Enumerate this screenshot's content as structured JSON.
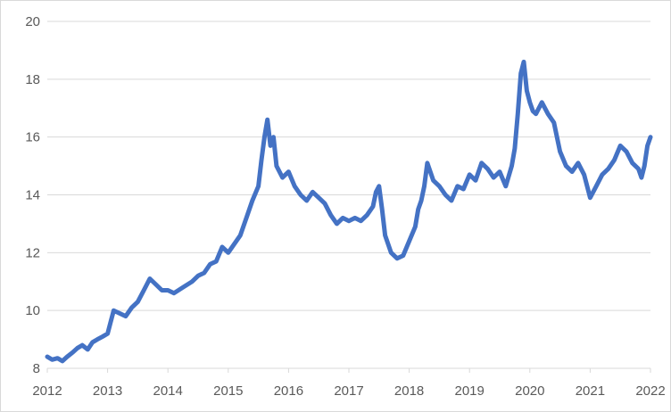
{
  "chart_data": {
    "type": "line",
    "title": "",
    "xlabel": "",
    "ylabel": "",
    "xlim": [
      2012,
      2022
    ],
    "ylim": [
      8,
      20
    ],
    "x_ticks": [
      "2012",
      "2013",
      "2014",
      "2015",
      "2016",
      "2017",
      "2018",
      "2019",
      "2020",
      "2021",
      "2022"
    ],
    "y_ticks": [
      "8",
      "10",
      "12",
      "14",
      "16",
      "18",
      "20"
    ],
    "grid": "horizontal",
    "legend": "none",
    "series": [
      {
        "color": "#4472c4",
        "points": [
          [
            2012.0,
            8.4
          ],
          [
            2012.08,
            8.3
          ],
          [
            2012.17,
            8.35
          ],
          [
            2012.25,
            8.25
          ],
          [
            2012.33,
            8.4
          ],
          [
            2012.42,
            8.55
          ],
          [
            2012.5,
            8.7
          ],
          [
            2012.58,
            8.8
          ],
          [
            2012.67,
            8.65
          ],
          [
            2012.75,
            8.9
          ],
          [
            2012.83,
            9.0
          ],
          [
            2012.92,
            9.1
          ],
          [
            2013.0,
            9.2
          ],
          [
            2013.05,
            9.6
          ],
          [
            2013.1,
            10.0
          ],
          [
            2013.2,
            9.9
          ],
          [
            2013.3,
            9.8
          ],
          [
            2013.4,
            10.1
          ],
          [
            2013.5,
            10.3
          ],
          [
            2013.6,
            10.7
          ],
          [
            2013.7,
            11.1
          ],
          [
            2013.8,
            10.9
          ],
          [
            2013.9,
            10.7
          ],
          [
            2014.0,
            10.7
          ],
          [
            2014.1,
            10.6
          ],
          [
            2014.25,
            10.8
          ],
          [
            2014.4,
            11.0
          ],
          [
            2014.5,
            11.2
          ],
          [
            2014.6,
            11.3
          ],
          [
            2014.7,
            11.6
          ],
          [
            2014.8,
            11.7
          ],
          [
            2014.9,
            12.2
          ],
          [
            2015.0,
            12.0
          ],
          [
            2015.1,
            12.3
          ],
          [
            2015.2,
            12.6
          ],
          [
            2015.3,
            13.2
          ],
          [
            2015.4,
            13.8
          ],
          [
            2015.5,
            14.3
          ],
          [
            2015.55,
            15.2
          ],
          [
            2015.6,
            16.0
          ],
          [
            2015.65,
            16.6
          ],
          [
            2015.7,
            15.7
          ],
          [
            2015.75,
            16.0
          ],
          [
            2015.8,
            15.0
          ],
          [
            2015.9,
            14.6
          ],
          [
            2016.0,
            14.8
          ],
          [
            2016.1,
            14.3
          ],
          [
            2016.2,
            14.0
          ],
          [
            2016.3,
            13.8
          ],
          [
            2016.4,
            14.1
          ],
          [
            2016.5,
            13.9
          ],
          [
            2016.6,
            13.7
          ],
          [
            2016.7,
            13.3
          ],
          [
            2016.8,
            13.0
          ],
          [
            2016.9,
            13.2
          ],
          [
            2017.0,
            13.1
          ],
          [
            2017.1,
            13.2
          ],
          [
            2017.2,
            13.1
          ],
          [
            2017.3,
            13.3
          ],
          [
            2017.4,
            13.6
          ],
          [
            2017.45,
            14.1
          ],
          [
            2017.5,
            14.3
          ],
          [
            2017.55,
            13.5
          ],
          [
            2017.6,
            12.6
          ],
          [
            2017.7,
            12.0
          ],
          [
            2017.8,
            11.8
          ],
          [
            2017.9,
            11.9
          ],
          [
            2018.0,
            12.4
          ],
          [
            2018.1,
            12.9
          ],
          [
            2018.15,
            13.5
          ],
          [
            2018.2,
            13.8
          ],
          [
            2018.25,
            14.3
          ],
          [
            2018.3,
            15.1
          ],
          [
            2018.4,
            14.5
          ],
          [
            2018.5,
            14.3
          ],
          [
            2018.6,
            14.0
          ],
          [
            2018.7,
            13.8
          ],
          [
            2018.8,
            14.3
          ],
          [
            2018.9,
            14.2
          ],
          [
            2019.0,
            14.7
          ],
          [
            2019.1,
            14.5
          ],
          [
            2019.2,
            15.1
          ],
          [
            2019.3,
            14.9
          ],
          [
            2019.4,
            14.6
          ],
          [
            2019.5,
            14.8
          ],
          [
            2019.6,
            14.3
          ],
          [
            2019.7,
            15.0
          ],
          [
            2019.75,
            15.6
          ],
          [
            2019.8,
            16.8
          ],
          [
            2019.85,
            18.2
          ],
          [
            2019.9,
            18.6
          ],
          [
            2019.95,
            17.6
          ],
          [
            2020.0,
            17.2
          ],
          [
            2020.05,
            16.9
          ],
          [
            2020.1,
            16.8
          ],
          [
            2020.2,
            17.2
          ],
          [
            2020.3,
            16.8
          ],
          [
            2020.4,
            16.5
          ],
          [
            2020.5,
            15.5
          ],
          [
            2020.6,
            15.0
          ],
          [
            2020.7,
            14.8
          ],
          [
            2020.8,
            15.1
          ],
          [
            2020.9,
            14.7
          ],
          [
            2021.0,
            13.9
          ],
          [
            2021.1,
            14.3
          ],
          [
            2021.2,
            14.7
          ],
          [
            2021.3,
            14.9
          ],
          [
            2021.4,
            15.2
          ],
          [
            2021.5,
            15.7
          ],
          [
            2021.6,
            15.5
          ],
          [
            2021.7,
            15.1
          ],
          [
            2021.8,
            14.9
          ],
          [
            2021.85,
            14.6
          ],
          [
            2021.9,
            15.0
          ],
          [
            2021.95,
            15.7
          ],
          [
            2022.0,
            16.0
          ]
        ]
      }
    ]
  }
}
